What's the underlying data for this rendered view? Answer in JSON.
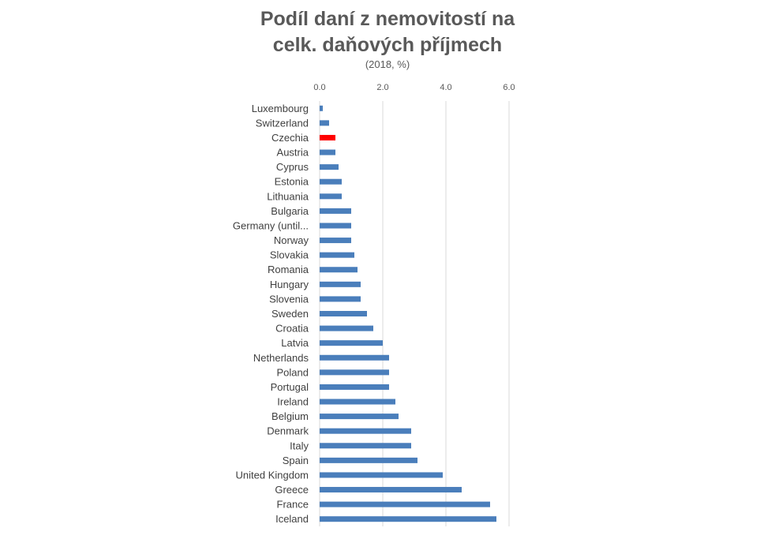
{
  "chart_data": {
    "type": "bar",
    "orientation": "horizontal",
    "title_lines": [
      "Podíl daní z nemovitostí na",
      "celk. daňových příjmech"
    ],
    "subtitle": "(2018, %)",
    "xaxis_position": "top",
    "xlim": [
      0,
      6
    ],
    "xticks": [
      0,
      2,
      4,
      6
    ],
    "xtick_labels": [
      "0.0",
      "2.0",
      "4.0",
      "6.0"
    ],
    "grid": true,
    "legend": "none",
    "bar_color": "#4a7ebb",
    "highlight_color": "#ff0000",
    "highlight_category": "Czechia",
    "categories": [
      "Luxembourg",
      "Switzerland",
      "Czechia",
      "Austria",
      "Cyprus",
      "Estonia",
      "Lithuania",
      "Bulgaria",
      "Germany (until...",
      "Norway",
      "Slovakia",
      "Romania",
      "Hungary",
      "Slovenia",
      "Sweden",
      "Croatia",
      "Latvia",
      "Netherlands",
      "Poland",
      "Portugal",
      "Ireland",
      "Belgium",
      "Denmark",
      "Italy",
      "Spain",
      "United Kingdom",
      "Greece",
      "France",
      "Iceland"
    ],
    "values": [
      0.1,
      0.3,
      0.5,
      0.5,
      0.6,
      0.7,
      0.7,
      1.0,
      1.0,
      1.0,
      1.1,
      1.2,
      1.3,
      1.3,
      1.5,
      1.7,
      2.0,
      2.2,
      2.2,
      2.2,
      2.4,
      2.5,
      2.9,
      2.9,
      3.1,
      3.9,
      4.5,
      5.4,
      5.6
    ]
  }
}
